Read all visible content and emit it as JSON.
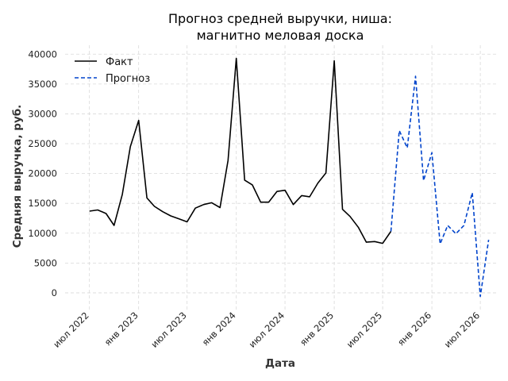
{
  "chart_data": {
    "type": "line",
    "title": [
      "Прогноз средней выручки, ниша:",
      "магнитно меловая доска"
    ],
    "xlabel": "Дата",
    "ylabel": "Средняя выручка, руб.",
    "ylim": [
      -2800,
      41500
    ],
    "xlim": [
      "2022-04-01",
      "2026-09-01"
    ],
    "yticks": [
      0,
      5000,
      10000,
      15000,
      20000,
      25000,
      30000,
      35000,
      40000
    ],
    "xticks": [
      {
        "date": "2022-07-01",
        "label": "июл 2022"
      },
      {
        "date": "2023-01-01",
        "label": "янв 2023"
      },
      {
        "date": "2023-07-01",
        "label": "июл 2023"
      },
      {
        "date": "2024-01-01",
        "label": "янв 2024"
      },
      {
        "date": "2024-07-01",
        "label": "июл 2024"
      },
      {
        "date": "2025-01-01",
        "label": "янв 2025"
      },
      {
        "date": "2025-07-01",
        "label": "июл 2025"
      },
      {
        "date": "2026-01-01",
        "label": "янв 2026"
      },
      {
        "date": "2026-07-01",
        "label": "июл 2026"
      }
    ],
    "grid": true,
    "legend_position": "top-left",
    "series": [
      {
        "name": "Факт",
        "color": "#000000",
        "style": "solid",
        "x": [
          "2022-07",
          "2022-08",
          "2022-09",
          "2022-10",
          "2022-11",
          "2022-12",
          "2023-01",
          "2023-02",
          "2023-03",
          "2023-04",
          "2023-05",
          "2023-06",
          "2023-07",
          "2023-08",
          "2023-09",
          "2023-10",
          "2023-11",
          "2023-12",
          "2024-01",
          "2024-02",
          "2024-03",
          "2024-04",
          "2024-05",
          "2024-06",
          "2024-07",
          "2024-08",
          "2024-09",
          "2024-10",
          "2024-11",
          "2024-12",
          "2025-01",
          "2025-02",
          "2025-03",
          "2025-04",
          "2025-05",
          "2025-06",
          "2025-07",
          "2025-08"
        ],
        "values": [
          13700,
          13900,
          13300,
          11300,
          16500,
          24500,
          28900,
          15900,
          14500,
          13600,
          12900,
          12400,
          11900,
          14200,
          14800,
          15100,
          14300,
          22200,
          39300,
          18900,
          18100,
          15200,
          15200,
          17000,
          17200,
          14800,
          16300,
          16100,
          18400,
          20100,
          38900,
          14000,
          12800,
          11000,
          8500,
          8600,
          8300,
          10300
        ]
      },
      {
        "name": "Прогноз",
        "color": "#0044cc",
        "style": "dashed",
        "x": [
          "2025-08",
          "2025-09",
          "2025-10",
          "2025-11",
          "2025-12",
          "2026-01",
          "2026-02",
          "2026-03",
          "2026-04",
          "2026-05",
          "2026-06",
          "2026-07",
          "2026-08"
        ],
        "values": [
          10300,
          27200,
          24300,
          36300,
          18800,
          23500,
          8200,
          11300,
          9900,
          11300,
          16800,
          -600,
          8900
        ]
      }
    ]
  }
}
